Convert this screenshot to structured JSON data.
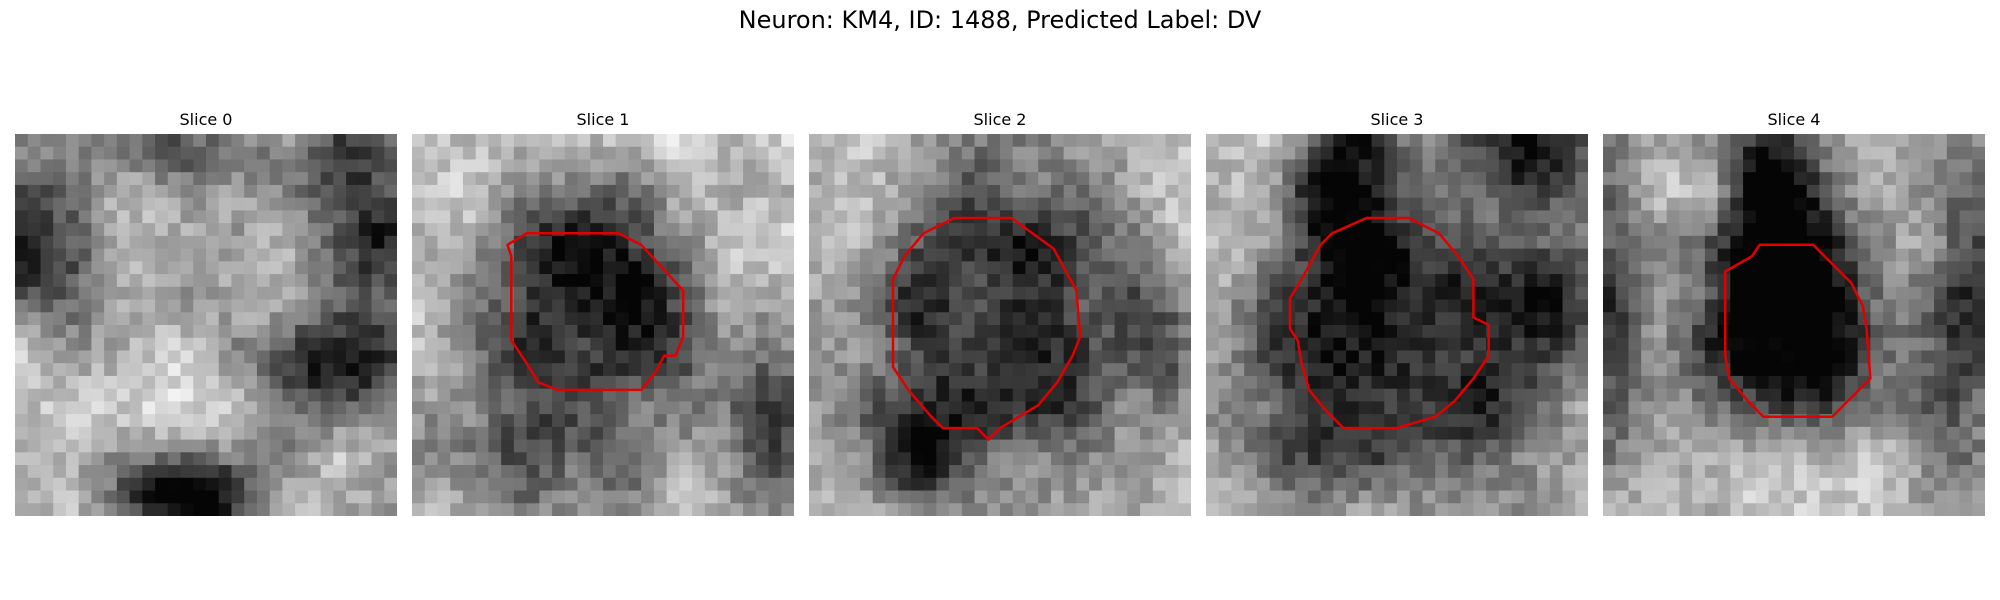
{
  "figure": {
    "title": "Neuron: KM4, ID: 1488, Predicted Label: DV",
    "contour_color": "#e00000",
    "grid_size": 30
  },
  "panels": [
    {
      "title": "Slice 0",
      "seed": 11,
      "dark_blob": null,
      "dark_regions": [
        [
          0.0,
          0.3,
          0.15,
          0.12,
          0.6
        ],
        [
          0.92,
          0.25,
          0.12,
          0.2,
          0.55
        ],
        [
          0.85,
          0.6,
          0.12,
          0.1,
          0.6
        ],
        [
          0.45,
          0.95,
          0.12,
          0.08,
          0.85
        ],
        [
          0.5,
          0.05,
          0.25,
          0.06,
          0.3
        ]
      ],
      "base_level": 0.72,
      "contour": []
    },
    {
      "title": "Slice 1",
      "seed": 23,
      "dark_blob": [
        0.46,
        0.46,
        0.2,
        0.22
      ],
      "dark_regions": [
        [
          0.95,
          0.7,
          0.08,
          0.2,
          0.5
        ],
        [
          0.3,
          0.85,
          0.2,
          0.1,
          0.4
        ]
      ],
      "base_level": 0.8,
      "contour": [
        [
          0.25,
          0.29
        ],
        [
          0.3,
          0.26
        ],
        [
          0.54,
          0.26
        ],
        [
          0.6,
          0.29
        ],
        [
          0.71,
          0.41
        ],
        [
          0.71,
          0.53
        ],
        [
          0.69,
          0.58
        ],
        [
          0.66,
          0.58
        ],
        [
          0.64,
          0.62
        ],
        [
          0.6,
          0.67
        ],
        [
          0.38,
          0.67
        ],
        [
          0.33,
          0.65
        ],
        [
          0.3,
          0.6
        ],
        [
          0.26,
          0.54
        ],
        [
          0.26,
          0.32
        ]
      ]
    },
    {
      "title": "Slice 2",
      "seed": 37,
      "dark_blob": [
        0.5,
        0.5,
        0.25,
        0.27
      ],
      "dark_regions": [
        [
          0.3,
          0.85,
          0.1,
          0.08,
          0.5
        ],
        [
          0.95,
          0.6,
          0.06,
          0.15,
          0.4
        ]
      ],
      "base_level": 0.8,
      "contour": [
        [
          0.25,
          0.32
        ],
        [
          0.3,
          0.26
        ],
        [
          0.38,
          0.22
        ],
        [
          0.53,
          0.22
        ],
        [
          0.64,
          0.3
        ],
        [
          0.7,
          0.41
        ],
        [
          0.71,
          0.53
        ],
        [
          0.69,
          0.58
        ],
        [
          0.65,
          0.65
        ],
        [
          0.6,
          0.71
        ],
        [
          0.5,
          0.77
        ],
        [
          0.47,
          0.8
        ],
        [
          0.44,
          0.77
        ],
        [
          0.35,
          0.77
        ],
        [
          0.32,
          0.74
        ],
        [
          0.26,
          0.67
        ],
        [
          0.22,
          0.61
        ],
        [
          0.22,
          0.38
        ]
      ]
    },
    {
      "title": "Slice 3",
      "seed": 41,
      "dark_blob": [
        0.5,
        0.55,
        0.27,
        0.28
      ],
      "dark_regions": [
        [
          0.35,
          0.1,
          0.1,
          0.15,
          0.6
        ],
        [
          0.85,
          0.05,
          0.15,
          0.1,
          0.5
        ],
        [
          0.9,
          0.45,
          0.1,
          0.15,
          0.4
        ]
      ],
      "base_level": 0.75,
      "contour": [
        [
          0.3,
          0.29
        ],
        [
          0.33,
          0.26
        ],
        [
          0.42,
          0.22
        ],
        [
          0.53,
          0.22
        ],
        [
          0.61,
          0.26
        ],
        [
          0.66,
          0.32
        ],
        [
          0.7,
          0.38
        ],
        [
          0.7,
          0.48
        ],
        [
          0.74,
          0.5
        ],
        [
          0.74,
          0.58
        ],
        [
          0.7,
          0.64
        ],
        [
          0.65,
          0.7
        ],
        [
          0.6,
          0.74
        ],
        [
          0.5,
          0.77
        ],
        [
          0.36,
          0.77
        ],
        [
          0.31,
          0.72
        ],
        [
          0.27,
          0.67
        ],
        [
          0.25,
          0.6
        ],
        [
          0.24,
          0.54
        ],
        [
          0.22,
          0.51
        ],
        [
          0.22,
          0.43
        ],
        [
          0.25,
          0.38
        ]
      ]
    },
    {
      "title": "Slice 4",
      "seed": 53,
      "dark_blob": [
        0.5,
        0.5,
        0.2,
        0.17
      ],
      "dark_regions": [
        [
          0.45,
          0.15,
          0.1,
          0.25,
          0.75
        ],
        [
          0.02,
          0.4,
          0.06,
          0.3,
          0.5
        ],
        [
          0.95,
          0.5,
          0.08,
          0.3,
          0.5
        ]
      ],
      "base_level": 0.78,
      "contour": [
        [
          0.32,
          0.36
        ],
        [
          0.39,
          0.32
        ],
        [
          0.41,
          0.29
        ],
        [
          0.55,
          0.29
        ],
        [
          0.6,
          0.34
        ],
        [
          0.65,
          0.39
        ],
        [
          0.68,
          0.45
        ],
        [
          0.69,
          0.51
        ],
        [
          0.7,
          0.64
        ],
        [
          0.67,
          0.67
        ],
        [
          0.6,
          0.74
        ],
        [
          0.55,
          0.74
        ],
        [
          0.42,
          0.74
        ],
        [
          0.38,
          0.7
        ],
        [
          0.33,
          0.64
        ],
        [
          0.32,
          0.58
        ],
        [
          0.32,
          0.4
        ]
      ]
    }
  ]
}
